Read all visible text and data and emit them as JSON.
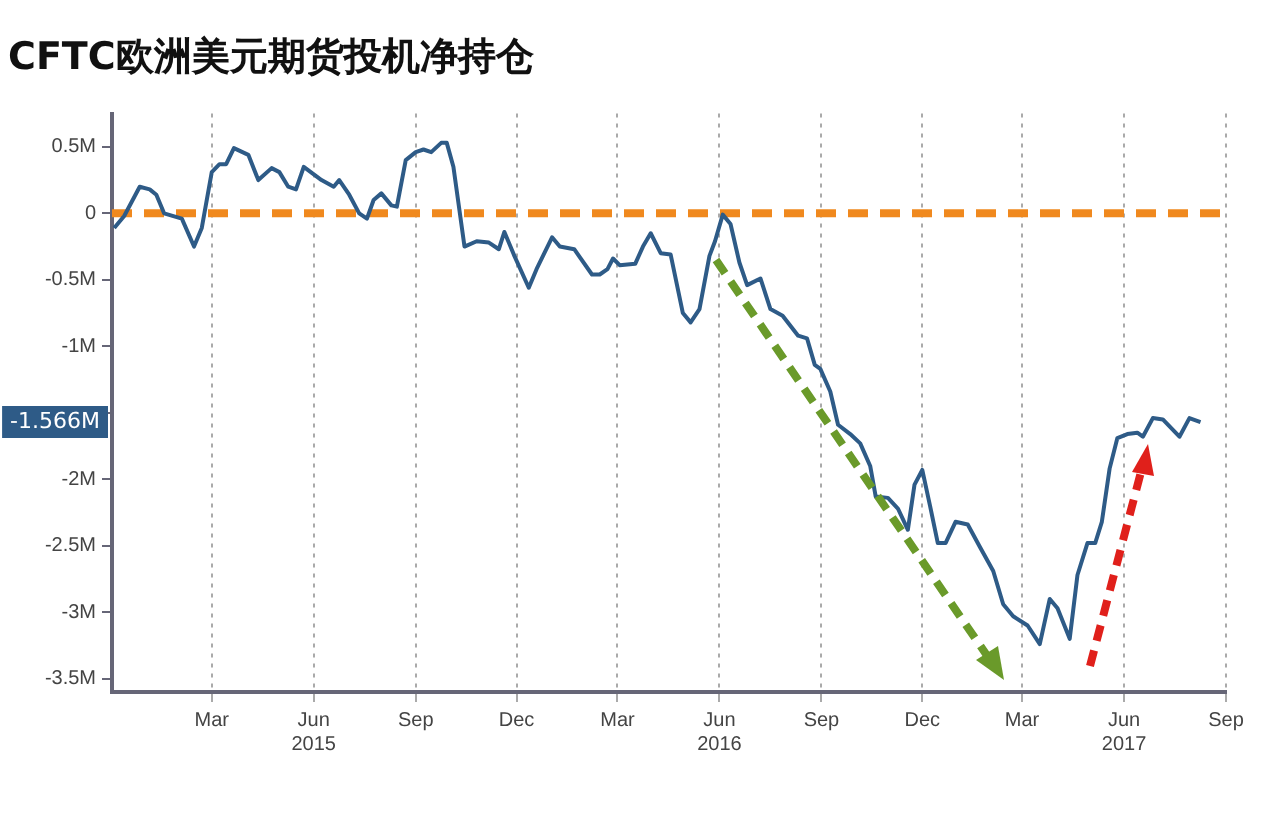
{
  "chart_data": {
    "type": "line",
    "title": "CFTC欧洲美元期货投机净持仓",
    "x": [
      "2014-12-03",
      "2014-12-12",
      "2014-12-26",
      "2015-01-04",
      "2015-01-10",
      "2015-01-17",
      "2015-02-02",
      "2015-02-13",
      "2015-02-20",
      "2015-03-01",
      "2015-03-08",
      "2015-03-14",
      "2015-03-21",
      "2015-04-03",
      "2015-04-12",
      "2015-04-24",
      "2015-05-01",
      "2015-05-09",
      "2015-05-16",
      "2015-05-23",
      "2015-06-08",
      "2015-06-19",
      "2015-06-24",
      "2015-07-03",
      "2015-07-12",
      "2015-07-19",
      "2015-07-25",
      "2015-08-01",
      "2015-08-10",
      "2015-08-15",
      "2015-08-23",
      "2015-09-01",
      "2015-09-08",
      "2015-09-15",
      "2015-09-24",
      "2015-09-29",
      "2015-10-05",
      "2015-10-15",
      "2015-10-26",
      "2015-11-06",
      "2015-11-15",
      "2015-11-20",
      "2015-11-29",
      "2015-12-12",
      "2015-12-19",
      "2016-01-02",
      "2016-01-09",
      "2016-01-22",
      "2016-02-07",
      "2016-02-14",
      "2016-02-21",
      "2016-02-26",
      "2016-03-03",
      "2016-03-17",
      "2016-03-24",
      "2016-03-31",
      "2016-04-09",
      "2016-04-18",
      "2016-04-29",
      "2016-05-06",
      "2016-05-14",
      "2016-05-23",
      "2016-05-28",
      "2016-06-04",
      "2016-06-11",
      "2016-06-19",
      "2016-06-26",
      "2016-07-08",
      "2016-07-17",
      "2016-07-28",
      "2016-08-11",
      "2016-08-19",
      "2016-08-26",
      "2016-08-31",
      "2016-09-09",
      "2016-09-16",
      "2016-09-27",
      "2016-10-06",
      "2016-10-15",
      "2016-10-20",
      "2016-10-31",
      "2016-11-09",
      "2016-11-18",
      "2016-11-24",
      "2016-12-01",
      "2016-12-08",
      "2016-12-15",
      "2016-12-22",
      "2016-12-31",
      "2017-01-11",
      "2017-01-22",
      "2017-02-03",
      "2017-02-12",
      "2017-02-21",
      "2017-03-06",
      "2017-03-17",
      "2017-03-26",
      "2017-04-02",
      "2017-04-13",
      "2017-04-20",
      "2017-04-29",
      "2017-05-06",
      "2017-05-12",
      "2017-05-19",
      "2017-05-26",
      "2017-06-04",
      "2017-06-13",
      "2017-06-18",
      "2017-06-27",
      "2017-07-06",
      "2017-07-21",
      "2017-07-30",
      "2017-08-09"
    ],
    "series": [
      {
        "color": "#2e5b87",
        "values": [
          -0.11,
          -0.02,
          0.2,
          0.18,
          0.14,
          0,
          -0.04,
          -0.25,
          -0.11,
          0.31,
          0.37,
          0.37,
          0.49,
          0.44,
          0.25,
          0.34,
          0.31,
          0.2,
          0.18,
          0.35,
          0.25,
          0.2,
          0.25,
          0.14,
          0,
          -0.04,
          0.1,
          0.15,
          0.06,
          0.05,
          0.4,
          0.46,
          0.48,
          0.46,
          0.53,
          0.53,
          0.35,
          -0.25,
          -0.21,
          -0.22,
          -0.27,
          -0.14,
          -0.32,
          -0.56,
          -0.42,
          -0.18,
          -0.25,
          -0.27,
          -0.46,
          -0.46,
          -0.42,
          -0.34,
          -0.39,
          -0.38,
          -0.25,
          -0.15,
          -0.3,
          -0.31,
          -0.75,
          -0.82,
          -0.72,
          -0.32,
          -0.21,
          -0.01,
          -0.08,
          -0.37,
          -0.54,
          -0.49,
          -0.72,
          -0.77,
          -0.92,
          -0.94,
          -1.14,
          -1.17,
          -1.34,
          -1.59,
          -1.66,
          -1.73,
          -1.9,
          -2.13,
          -2.14,
          -2.22,
          -2.38,
          -2.04,
          -1.93,
          -2.2,
          -2.48,
          -2.48,
          -2.32,
          -2.34,
          -2.51,
          -2.69,
          -2.94,
          -3.03,
          -3.1,
          -3.24,
          -2.9,
          -2.97,
          -3.2,
          -2.72,
          -2.48,
          -2.48,
          -2.32,
          -1.92,
          -1.69,
          -1.66,
          -1.65,
          -1.68,
          -1.54,
          -1.55,
          -1.68,
          -1.54,
          -1.57
        ]
      }
    ],
    "xlim": [
      "2014-12-01",
      "2017-09-01"
    ],
    "xticks": [
      {
        "value": "2015-03-01",
        "label": "Mar"
      },
      {
        "value": "2015-06-01",
        "label": "Jun\n2015"
      },
      {
        "value": "2015-09-01",
        "label": "Sep"
      },
      {
        "value": "2015-12-01",
        "label": "Dec"
      },
      {
        "value": "2016-03-01",
        "label": "Mar"
      },
      {
        "value": "2016-06-01",
        "label": "Jun\n2016"
      },
      {
        "value": "2016-09-01",
        "label": "Sep"
      },
      {
        "value": "2016-12-01",
        "label": "Dec"
      },
      {
        "value": "2017-03-01",
        "label": "Mar"
      },
      {
        "value": "2017-06-01",
        "label": "Jun\n2017"
      },
      {
        "value": "2017-09-01",
        "label": "Sep"
      }
    ],
    "ylim": [
      -3.6,
      0.75
    ],
    "yticks": [
      {
        "value": 0.5,
        "label": "0.5M"
      },
      0,
      {
        "value": -0.5,
        "label": "-0.5M"
      },
      {
        "value": -1,
        "label": "-1M"
      },
      {
        "value": -1.5,
        "label": null
      },
      {
        "value": -2,
        "label": "-2M"
      },
      {
        "value": -2.5,
        "label": "-2.5M"
      },
      {
        "value": -3,
        "label": "-3M"
      },
      {
        "value": -3.5,
        "label": "-3.5M"
      }
    ],
    "ref_lines": [
      {
        "axis": "y",
        "value": 0,
        "color": "#f0891e",
        "line_style": "dashed"
      }
    ],
    "annotations": [
      "-1.566M"
    ],
    "grid": "x",
    "legend": false,
    "marker": "none",
    "line_style": "solid"
  }
}
